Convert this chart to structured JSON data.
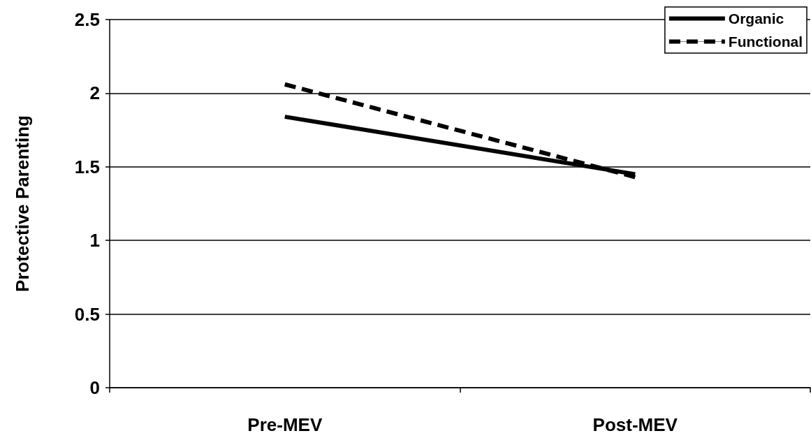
{
  "chart_data": {
    "type": "line",
    "ylabel": "Protective Parenting",
    "categories": [
      "Pre-MEV",
      "Post-MEV"
    ],
    "series": [
      {
        "name": "Organic",
        "color": "#050505",
        "values": [
          1.84,
          1.45
        ],
        "line_style": "solid"
      },
      {
        "name": "Functional",
        "color": "#000000",
        "values": [
          2.06,
          1.43
        ],
        "line_style": "dashed"
      }
    ],
    "ylim": [
      0,
      2.5
    ],
    "yticks": [
      0,
      0.5,
      1,
      1.5,
      2,
      2.5
    ],
    "grid": "y",
    "legend": "top right",
    "marker": "none"
  }
}
